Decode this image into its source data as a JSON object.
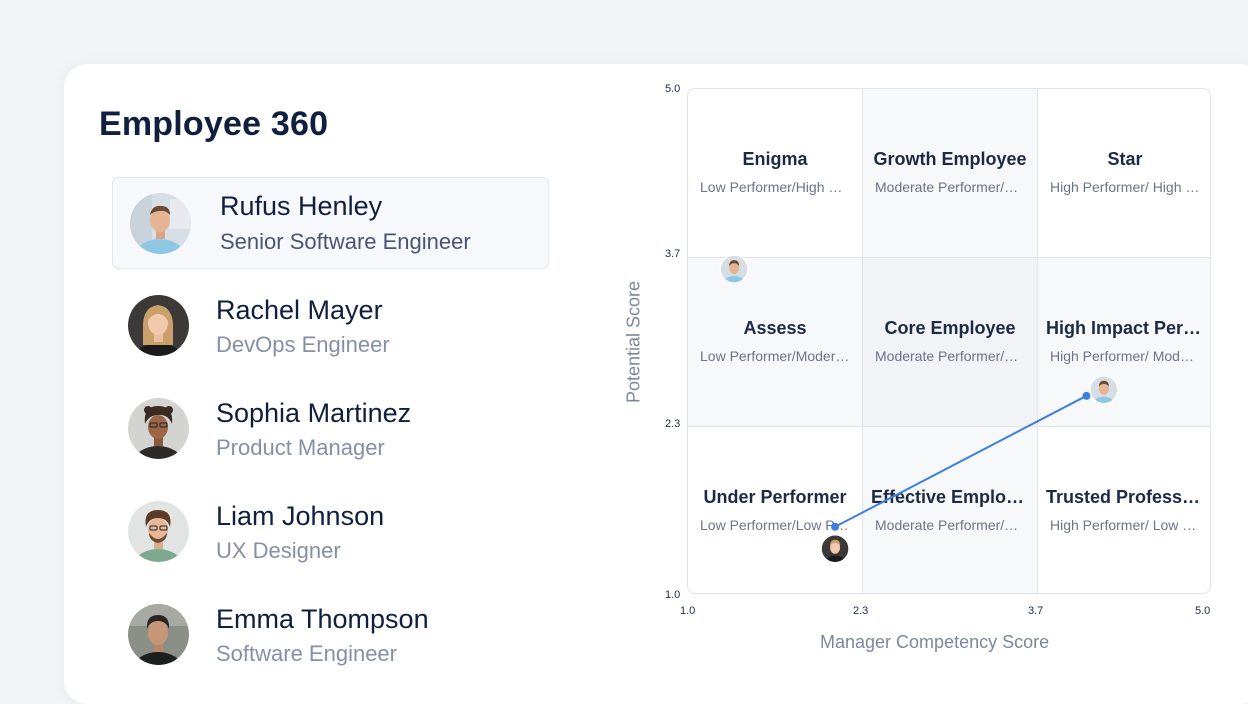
{
  "app": {
    "title": "Employee 360"
  },
  "employees": [
    {
      "name": "Rufus Henley",
      "role": "Senior Software Engineer",
      "selected": true,
      "avatar_icon": "avatar-photo"
    },
    {
      "name": "Rachel Mayer",
      "role": "DevOps Engineer",
      "selected": false,
      "avatar_icon": "avatar-photo"
    },
    {
      "name": "Sophia Martinez",
      "role": "Product Manager",
      "selected": false,
      "avatar_icon": "avatar-photo"
    },
    {
      "name": "Liam Johnson",
      "role": "UX Designer",
      "selected": false,
      "avatar_icon": "avatar-photo"
    },
    {
      "name": "Emma Thompson",
      "role": "Software Engineer",
      "selected": false,
      "avatar_icon": "avatar-photo"
    }
  ],
  "matrix": {
    "xlabel": "Manager Competency Score",
    "ylabel": "Potential  Score",
    "x_ticks": [
      "1.0",
      "2.3",
      "3.7",
      "5.0"
    ],
    "y_ticks": [
      "5.0",
      "3.7",
      "2.3",
      "1.0"
    ],
    "cells": [
      {
        "title": "Enigma",
        "sub": "Low Performer/High Potential"
      },
      {
        "title": "Growth Employee",
        "sub": "Moderate Performer/High Potential"
      },
      {
        "title": "Star",
        "sub": "High Performer/ High Potential"
      },
      {
        "title": "Assess",
        "sub": "Low Performer/Moderate Potential"
      },
      {
        "title": "Core Employee",
        "sub": "Moderate Performer/Moderate Potential"
      },
      {
        "title": "High Impact Performer",
        "sub": "High Performer/ Moderate Potential"
      },
      {
        "title": "Under Performer",
        "sub": "Low Performer/Low Potential"
      },
      {
        "title": "Effective Employee",
        "sub": "Moderate Performer/Low Potential"
      },
      {
        "title": "Trusted Professional",
        "sub": "High Performer/ Low Potential"
      }
    ],
    "accent_color": "#3d7fe0",
    "points": [
      {
        "employee": "Rufus Henley",
        "x": 1.35,
        "y": 3.6
      },
      {
        "employee": "Rachel Mayer",
        "x": 2.1,
        "y": 1.35
      },
      {
        "employee": "Rufus Henley",
        "x": 4.2,
        "y": 2.6
      }
    ],
    "trend": {
      "from": {
        "x": 2.1,
        "y": 1.52
      },
      "to": {
        "x": 4.07,
        "y": 2.55
      }
    }
  }
}
